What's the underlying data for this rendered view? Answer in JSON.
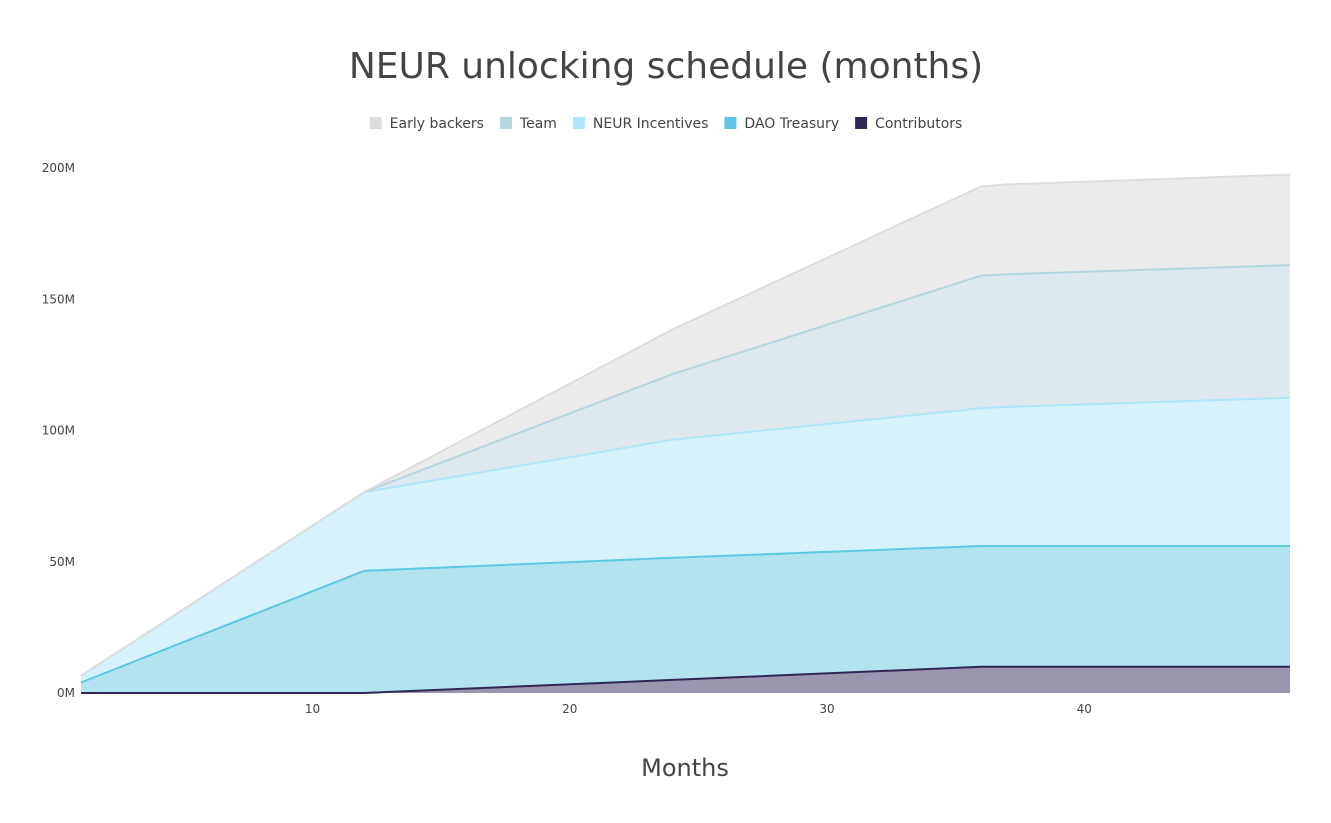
{
  "chart_data": {
    "type": "area",
    "stacked": true,
    "title": "NEUR unlocking schedule (months)",
    "xlabel": "Months",
    "ylabel": "",
    "xlim": [
      1,
      48
    ],
    "ylim": [
      0,
      200000000
    ],
    "x_ticks": [
      10,
      20,
      30,
      40
    ],
    "y_ticks": [
      {
        "value": 0,
        "label": "0M"
      },
      {
        "value": 50000000,
        "label": "50M"
      },
      {
        "value": 100000000,
        "label": "100M"
      },
      {
        "value": 150000000,
        "label": "150M"
      },
      {
        "value": 200000000,
        "label": "200M"
      }
    ],
    "grid": false,
    "legend_position": "top-center",
    "series_order_bottom_to_top": [
      "Contributors",
      "DAO Treasury",
      "NEUR Incentives",
      "Team",
      "Early backers"
    ],
    "series": [
      {
        "name": "Early backers",
        "color": "#dddddd",
        "fill": "#ebebeb",
        "x": [
          1,
          12,
          24,
          36,
          37,
          48
        ],
        "values": [
          0,
          0,
          17000000,
          34000000,
          34200000,
          34500000
        ]
      },
      {
        "name": "Team",
        "color": "#b4d7e0",
        "fill": "#dde9ee",
        "x": [
          1,
          12,
          24,
          36,
          37,
          48
        ],
        "values": [
          0,
          0,
          25000000,
          50500000,
          50500000,
          50500000
        ]
      },
      {
        "name": "NEUR Incentives",
        "color": "#aee6fb",
        "fill": "#d6f2fc",
        "x": [
          1,
          12,
          24,
          36,
          37,
          48
        ],
        "values": [
          2500000,
          30000000,
          45000000,
          52500000,
          53000000,
          56500000
        ]
      },
      {
        "name": "DAO Treasury",
        "color": "#5ec8e2",
        "fill": "#b3e2f0",
        "x": [
          1,
          12,
          24,
          36,
          37,
          48
        ],
        "values": [
          4000000,
          46500000,
          46500000,
          46000000,
          46000000,
          46000000
        ]
      },
      {
        "name": "Contributors",
        "color": "#2f2756",
        "fill": "#9c95b0",
        "x": [
          1,
          12,
          24,
          36,
          37,
          48
        ],
        "values": [
          0,
          0,
          5000000,
          10000000,
          10000000,
          10000000
        ]
      }
    ]
  }
}
